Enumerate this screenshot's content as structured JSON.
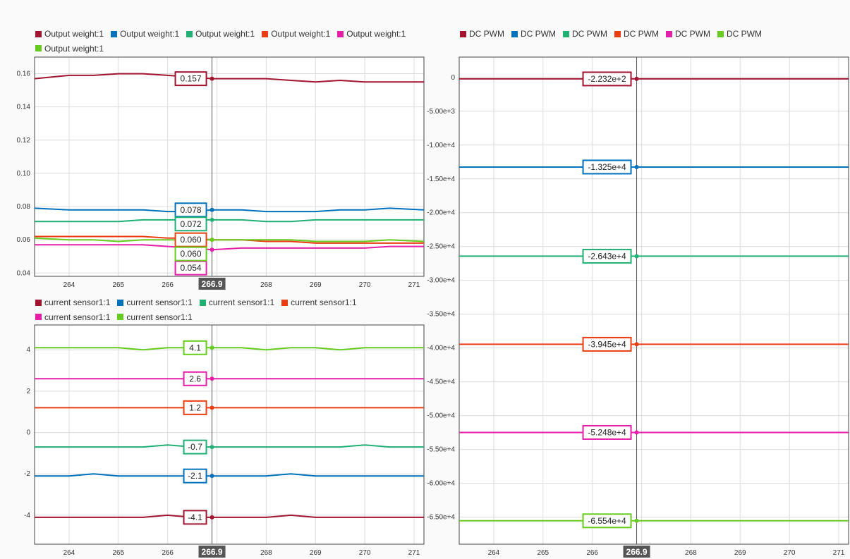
{
  "cursor": {
    "x": 266.9,
    "label": "266.9"
  },
  "chart_data": [
    {
      "type": "line",
      "id": "output-weight",
      "xlim": [
        263.3,
        271.2
      ],
      "ylim": [
        0.038,
        0.17
      ],
      "xticks": [
        264,
        265,
        266,
        267,
        268,
        269,
        270,
        271
      ],
      "xtick_labels": [
        "264",
        "265",
        "266",
        "",
        "268",
        "269",
        "270",
        "271"
      ],
      "yticks": [
        0.04,
        0.06,
        0.08,
        0.1,
        0.12,
        0.14,
        0.16
      ],
      "ytick_labels": [
        "0.04",
        "0.06",
        "0.08",
        "0.10",
        "0.12",
        "0.14",
        "0.16"
      ],
      "grid": true,
      "legend_position": "top-left",
      "x": [
        263.3,
        264.0,
        264.5,
        265.0,
        265.5,
        266.0,
        266.5,
        266.9,
        267.5,
        268.0,
        268.5,
        269.0,
        269.5,
        270.0,
        270.5,
        271.2
      ],
      "series": [
        {
          "name": "Output weight:1",
          "color": "#a2142f",
          "values": [
            0.157,
            0.159,
            0.159,
            0.16,
            0.16,
            0.159,
            0.158,
            0.157,
            0.157,
            0.157,
            0.156,
            0.155,
            0.156,
            0.155,
            0.155,
            0.155
          ],
          "cursor_value": "0.157"
        },
        {
          "name": "Output weight:1",
          "color": "#0072bd",
          "values": [
            0.079,
            0.078,
            0.078,
            0.078,
            0.078,
            0.077,
            0.077,
            0.078,
            0.078,
            0.077,
            0.077,
            0.077,
            0.078,
            0.078,
            0.079,
            0.078
          ],
          "cursor_value": "0.078"
        },
        {
          "name": "Output weight:1",
          "color": "#20b074",
          "values": [
            0.071,
            0.071,
            0.071,
            0.071,
            0.072,
            0.072,
            0.072,
            0.072,
            0.072,
            0.071,
            0.071,
            0.072,
            0.072,
            0.072,
            0.072,
            0.072
          ],
          "cursor_value": "0.072"
        },
        {
          "name": "Output weight:1",
          "color": "#ea3d10",
          "values": [
            0.062,
            0.062,
            0.062,
            0.062,
            0.062,
            0.061,
            0.061,
            0.06,
            0.06,
            0.059,
            0.059,
            0.058,
            0.058,
            0.058,
            0.058,
            0.058
          ],
          "cursor_value": "0.060"
        },
        {
          "name": "Output weight:1",
          "color": "#e51eaa",
          "values": [
            0.057,
            0.057,
            0.057,
            0.057,
            0.057,
            0.056,
            0.055,
            0.054,
            0.055,
            0.055,
            0.055,
            0.055,
            0.055,
            0.055,
            0.056,
            0.056
          ],
          "cursor_value": "0.054"
        },
        {
          "name": "Output weight:1",
          "color": "#66cc1f",
          "values": [
            0.061,
            0.06,
            0.06,
            0.059,
            0.06,
            0.06,
            0.06,
            0.06,
            0.06,
            0.06,
            0.06,
            0.059,
            0.059,
            0.059,
            0.06,
            0.059
          ],
          "cursor_value": "0.060"
        }
      ]
    },
    {
      "type": "line",
      "id": "current-sensor",
      "xlim": [
        263.3,
        271.2
      ],
      "ylim": [
        -5.4,
        5.2
      ],
      "xticks": [
        264,
        265,
        266,
        267,
        268,
        269,
        270,
        271
      ],
      "xtick_labels": [
        "264",
        "265",
        "266",
        "",
        "268",
        "269",
        "270",
        "271"
      ],
      "yticks": [
        -4,
        -2,
        0,
        2,
        4
      ],
      "ytick_labels": [
        "-4",
        "-2",
        "0",
        "2",
        "4"
      ],
      "grid": true,
      "legend_position": "top-left",
      "x": [
        263.3,
        264.0,
        264.5,
        265.0,
        265.5,
        266.0,
        266.5,
        266.9,
        267.5,
        268.0,
        268.5,
        269.0,
        269.5,
        270.0,
        270.5,
        271.2
      ],
      "series": [
        {
          "name": "current sensor1:1",
          "color": "#a2142f",
          "values": [
            -4.1,
            -4.1,
            -4.1,
            -4.1,
            -4.1,
            -4.0,
            -4.1,
            -4.1,
            -4.1,
            -4.1,
            -4.0,
            -4.1,
            -4.1,
            -4.1,
            -4.1,
            -4.1
          ],
          "cursor_value": "-4.1"
        },
        {
          "name": "current sensor1:1",
          "color": "#0072bd",
          "values": [
            -2.1,
            -2.1,
            -2.0,
            -2.1,
            -2.1,
            -2.1,
            -2.1,
            -2.1,
            -2.1,
            -2.1,
            -2.0,
            -2.1,
            -2.1,
            -2.1,
            -2.1,
            -2.1
          ],
          "cursor_value": "-2.1"
        },
        {
          "name": "current sensor1:1",
          "color": "#20b074",
          "values": [
            -0.7,
            -0.7,
            -0.7,
            -0.7,
            -0.7,
            -0.6,
            -0.7,
            -0.7,
            -0.7,
            -0.7,
            -0.7,
            -0.7,
            -0.7,
            -0.6,
            -0.7,
            -0.7
          ],
          "cursor_value": "-0.7"
        },
        {
          "name": "current sensor1:1",
          "color": "#ea3d10",
          "values": [
            1.2,
            1.2,
            1.2,
            1.2,
            1.2,
            1.2,
            1.2,
            1.2,
            1.2,
            1.2,
            1.2,
            1.2,
            1.2,
            1.2,
            1.2,
            1.2
          ],
          "cursor_value": "1.2"
        },
        {
          "name": "current sensor1:1",
          "color": "#e51eaa",
          "values": [
            2.6,
            2.6,
            2.6,
            2.6,
            2.6,
            2.6,
            2.6,
            2.6,
            2.6,
            2.6,
            2.6,
            2.6,
            2.6,
            2.6,
            2.6,
            2.6
          ],
          "cursor_value": "2.6"
        },
        {
          "name": "current sensor1:1",
          "color": "#66cc1f",
          "values": [
            4.1,
            4.1,
            4.1,
            4.1,
            4.0,
            4.1,
            4.1,
            4.1,
            4.1,
            4.0,
            4.1,
            4.1,
            4.0,
            4.1,
            4.1,
            4.1
          ],
          "cursor_value": "4.1"
        }
      ]
    },
    {
      "type": "line",
      "id": "dc-pwm",
      "xlim": [
        263.3,
        271.2
      ],
      "ylim": [
        -69000,
        3000
      ],
      "xticks": [
        264,
        265,
        266,
        267,
        268,
        269,
        270,
        271
      ],
      "xtick_labels": [
        "264",
        "265",
        "266",
        "",
        "268",
        "269",
        "270",
        "271"
      ],
      "yticks": [
        0,
        -5000,
        -10000,
        -15000,
        -20000,
        -25000,
        -30000,
        -35000,
        -40000,
        -45000,
        -50000,
        -55000,
        -60000,
        -65000
      ],
      "ytick_labels": [
        "0",
        "-5.00e+3",
        "-1.00e+4",
        "-1.50e+4",
        "-2.00e+4",
        "-2.50e+4",
        "-3.00e+4",
        "-3.50e+4",
        "-4.00e+4",
        "-4.50e+4",
        "-5.00e+4",
        "-5.50e+4",
        "-6.00e+4",
        "-6.50e+4"
      ],
      "grid": true,
      "legend_position": "top-left",
      "x": [
        263.3,
        271.2
      ],
      "series": [
        {
          "name": "DC PWM",
          "color": "#a2142f",
          "values": [
            -223.2,
            -223.2
          ],
          "cursor_value": "-2.232e+2"
        },
        {
          "name": "DC PWM",
          "color": "#0072bd",
          "values": [
            -13250,
            -13250
          ],
          "cursor_value": "-1.325e+4"
        },
        {
          "name": "DC PWM",
          "color": "#20b074",
          "values": [
            -26430,
            -26430
          ],
          "cursor_value": "-2.643e+4"
        },
        {
          "name": "DC PWM",
          "color": "#ea3d10",
          "values": [
            -39450,
            -39450
          ],
          "cursor_value": "-3.945e+4"
        },
        {
          "name": "DC PWM",
          "color": "#e51eaa",
          "values": [
            -52480,
            -52480
          ],
          "cursor_value": "-5.248e+4"
        },
        {
          "name": "DC PWM",
          "color": "#66cc1f",
          "values": [
            -65540,
            -65540
          ],
          "cursor_value": "-6.554e+4"
        }
      ]
    }
  ]
}
